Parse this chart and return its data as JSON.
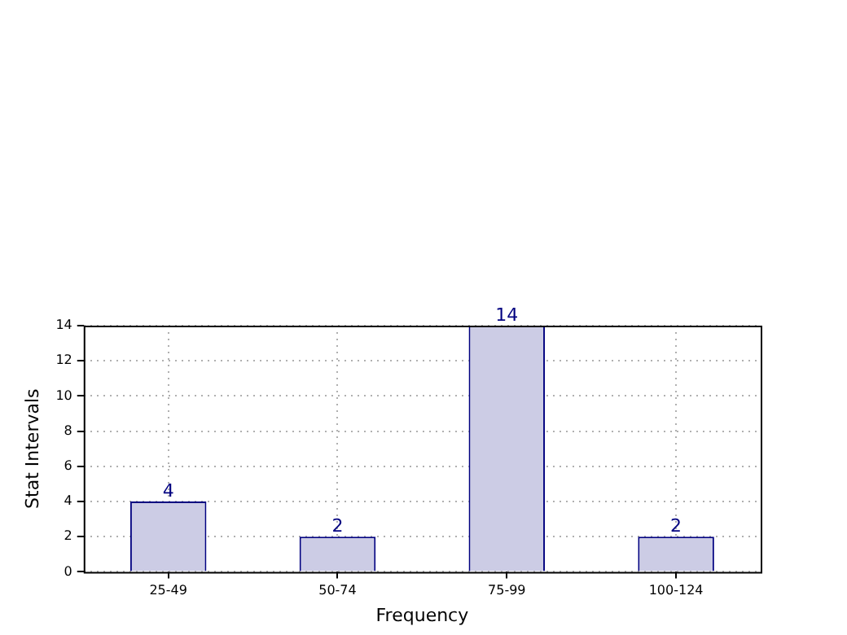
{
  "chart_data": {
    "type": "bar",
    "xlabel": "Frequency",
    "ylabel": "Stat Intervals",
    "categories": [
      "25-49",
      "50-74",
      "75-99",
      "100-124"
    ],
    "values": [
      4,
      2,
      14,
      2
    ],
    "color": "#ccccE5",
    "ylim": [
      0,
      14
    ],
    "yticks": [
      0,
      2,
      4,
      6,
      8,
      10,
      12,
      14
    ],
    "grid": true,
    "data_labels": true,
    "legend": false
  }
}
